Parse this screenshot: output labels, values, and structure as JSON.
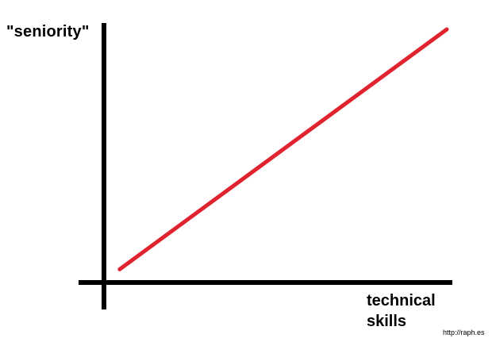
{
  "chart_data": {
    "type": "line",
    "title": "",
    "ylabel": "\"seniority\"",
    "xlabel_lines": [
      "technical",
      "skills"
    ],
    "series": [
      {
        "points": [
          {
            "x": 0.03,
            "y": 0.04
          },
          {
            "x": 1.0,
            "y": 1.0
          }
        ],
        "color": "#e0242f"
      }
    ],
    "xlim": [
      0,
      1
    ],
    "ylim": [
      0,
      1
    ],
    "grid": false,
    "axis_color": "#000000",
    "ticks": false
  },
  "watermark": "http://raph.es"
}
